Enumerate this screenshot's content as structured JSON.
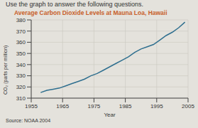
{
  "header": "Use the graph to answer the following questions.",
  "chart_data": {
    "type": "line",
    "title": "Average Carbon Dioxide Levels at Mauna Loa, Hawaii",
    "x_label": "Year",
    "y_label": "CO₂ (parts per million)",
    "source": "Source: NOAA 2004",
    "x": [
      1958,
      1960,
      1962,
      1964,
      1966,
      1968,
      1970,
      1972,
      1974,
      1976,
      1978,
      1980,
      1982,
      1984,
      1986,
      1988,
      1990,
      1992,
      1994,
      1996,
      1998,
      2000,
      2002,
      2004
    ],
    "values": [
      315,
      317,
      318,
      319,
      321,
      323,
      325,
      327,
      330,
      332,
      335,
      338,
      341,
      344,
      347,
      351,
      354,
      356,
      358,
      362,
      366,
      369,
      373,
      378
    ],
    "color": "#2f6f8f",
    "xlim": [
      1955,
      2005
    ],
    "xticks": [
      1955,
      1965,
      1975,
      1985,
      1995,
      2005
    ],
    "ylim": [
      310,
      380
    ],
    "yticks": [
      310,
      320,
      330,
      340,
      350,
      360,
      370,
      380
    ],
    "grid": true
  }
}
